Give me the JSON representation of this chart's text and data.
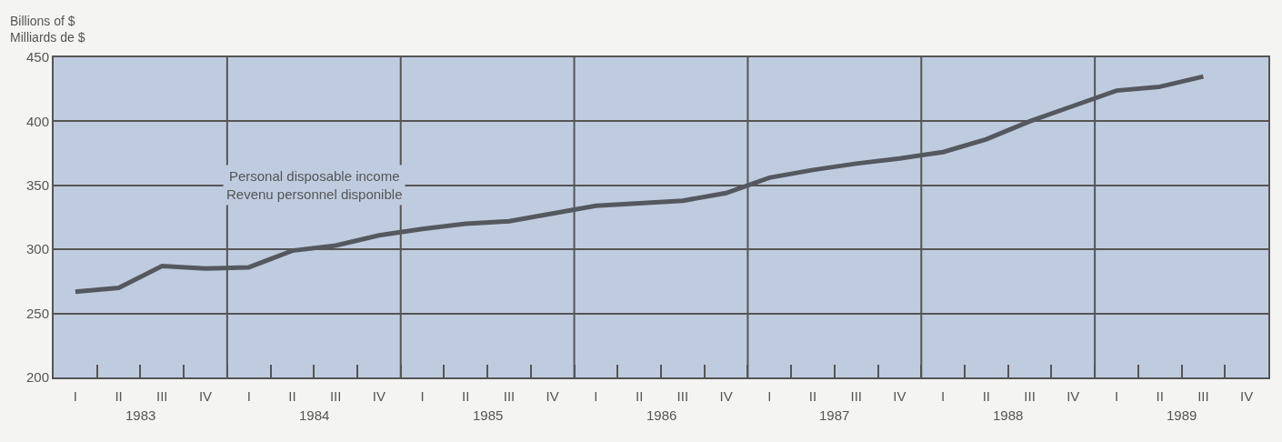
{
  "chart_data": {
    "type": "line",
    "ylabel": "Billions of $\nMilliards de $",
    "categories": [
      "I",
      "II",
      "III",
      "IV",
      "I",
      "II",
      "III",
      "IV",
      "I",
      "II",
      "III",
      "IV",
      "I",
      "II",
      "III",
      "IV",
      "I",
      "II",
      "III",
      "IV",
      "I",
      "II",
      "III",
      "IV",
      "I",
      "II",
      "III",
      "IV"
    ],
    "series": [
      {
        "name": "Personal disposable income\nRevenu personnel disponible",
        "color": "#55585e",
        "values": [
          267,
          270,
          287,
          285,
          286,
          299,
          303,
          311,
          316,
          320,
          322,
          328,
          334,
          336,
          338,
          344,
          356,
          362,
          367,
          371,
          376,
          386,
          400,
          412,
          424,
          427,
          435,
          null
        ]
      }
    ],
    "ylim": [
      200,
      450
    ],
    "yticks": [
      200,
      250,
      300,
      350,
      400,
      450
    ],
    "grid": "y",
    "legend": false,
    "marker": "none",
    "line_style": "solid",
    "annotations": [
      "1983",
      "1984",
      "1985",
      "1986",
      "1987",
      "1988",
      "1989"
    ]
  }
}
